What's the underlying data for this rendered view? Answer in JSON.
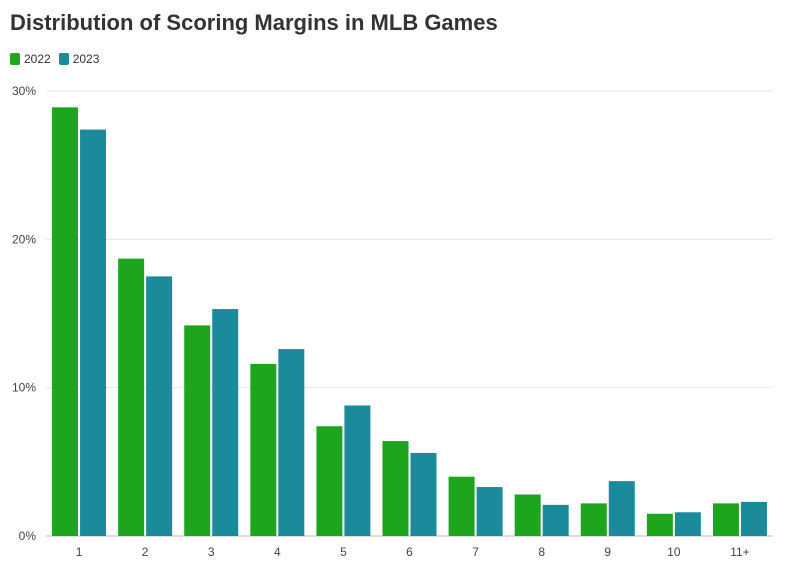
{
  "chart_data": {
    "type": "bar",
    "title": "Distribution of Scoring Margins in MLB Games",
    "categories": [
      "1",
      "2",
      "3",
      "4",
      "5",
      "6",
      "7",
      "8",
      "9",
      "10",
      "11+"
    ],
    "series": [
      {
        "name": "2022",
        "color": "#1ea51e",
        "values": [
          28.9,
          18.7,
          14.2,
          11.6,
          7.4,
          6.4,
          4.0,
          2.8,
          2.2,
          1.5,
          2.2
        ]
      },
      {
        "name": "2023",
        "color": "#1b8a9a",
        "values": [
          27.4,
          17.5,
          15.3,
          12.6,
          8.8,
          5.6,
          3.3,
          2.1,
          3.7,
          1.6,
          2.3
        ]
      }
    ],
    "yticks": [
      {
        "value": 0,
        "label": "0%"
      },
      {
        "value": 10,
        "label": "10%"
      },
      {
        "value": 20,
        "label": "20%"
      },
      {
        "value": 30,
        "label": "30%"
      }
    ],
    "ylim": [
      0,
      30
    ],
    "xlabel": "",
    "ylabel": "",
    "legend_position": "top-left",
    "grid": true
  }
}
